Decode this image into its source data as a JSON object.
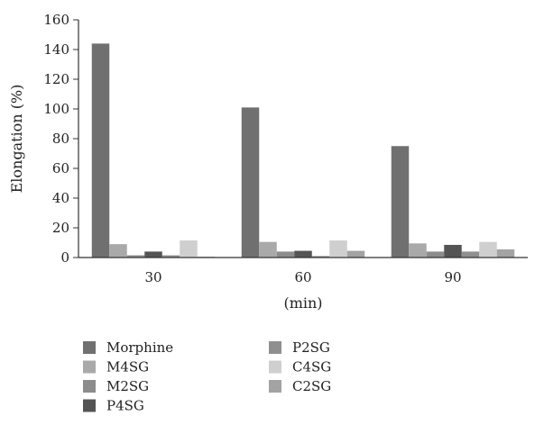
{
  "chart_data": {
    "type": "bar",
    "title": "",
    "xlabel": "(min)",
    "ylabel": "Elongation (%)",
    "ylim": [
      0,
      160
    ],
    "yticks": [
      0,
      20,
      40,
      60,
      80,
      100,
      120,
      140,
      160
    ],
    "grid": false,
    "legend_position": "bottom",
    "categories": [
      "30",
      "60",
      "90"
    ],
    "series": [
      {
        "name": "Morphine",
        "color": "#707070",
        "values": [
          144,
          101,
          75
        ]
      },
      {
        "name": "M4SG",
        "color": "#a9a9a9",
        "values": [
          9,
          10.5,
          9.5
        ]
      },
      {
        "name": "M2SG",
        "color": "#8c8c8c",
        "values": [
          1.5,
          4,
          4
        ]
      },
      {
        "name": "P4SG",
        "color": "#545454",
        "values": [
          4,
          4.5,
          8.5
        ]
      },
      {
        "name": "P2SG",
        "color": "#8f8f8f",
        "values": [
          1.5,
          1,
          4
        ]
      },
      {
        "name": "C4SG",
        "color": "#cfcfcf",
        "values": [
          11.5,
          11.5,
          10.5
        ]
      },
      {
        "name": "C2SG",
        "color": "#a3a3a3",
        "values": [
          0.5,
          4.5,
          5.5
        ]
      }
    ]
  }
}
